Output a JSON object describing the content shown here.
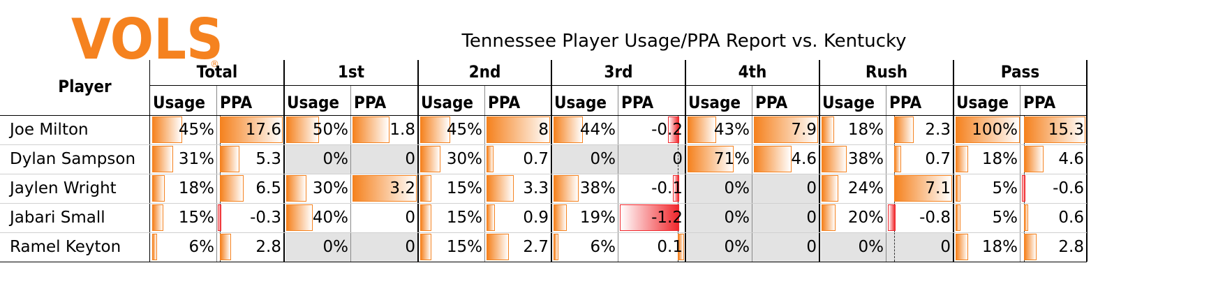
{
  "logo": {
    "text": "VOLS",
    "registered": "®",
    "color": "#f5821f"
  },
  "title": "Tennessee Player Usage/PPA Report vs. Kentucky",
  "chart_data": {
    "type": "table",
    "row_header": "Player",
    "groups": [
      "Total",
      "1st",
      "2nd",
      "3rd",
      "4th",
      "Rush",
      "Pass"
    ],
    "subcolumns": [
      "Usage",
      "PPA"
    ],
    "rows": [
      {
        "player": "Joe Milton",
        "usage": [
          "45%",
          "50%",
          "45%",
          "44%",
          "43%",
          "18%",
          "100%"
        ],
        "usage_values": [
          45,
          50,
          45,
          44,
          43,
          18,
          100
        ],
        "ppa": [
          "17.6",
          "1.8",
          "8",
          "-0.2",
          "7.9",
          "2.3",
          "15.3"
        ],
        "ppa_values": [
          17.6,
          1.8,
          8,
          -0.2,
          7.9,
          2.3,
          15.3
        ]
      },
      {
        "player": "Dylan Sampson",
        "usage": [
          "31%",
          "0%",
          "30%",
          "0%",
          "71%",
          "38%",
          "18%"
        ],
        "usage_values": [
          31,
          0,
          30,
          0,
          71,
          38,
          18
        ],
        "ppa": [
          "5.3",
          "0",
          "0.7",
          "0",
          "4.6",
          "0.7",
          "4.6"
        ],
        "ppa_values": [
          5.3,
          0,
          0.7,
          0,
          4.6,
          0.7,
          4.6
        ]
      },
      {
        "player": "Jaylen Wright",
        "usage": [
          "18%",
          "30%",
          "15%",
          "38%",
          "0%",
          "24%",
          "5%"
        ],
        "usage_values": [
          18,
          30,
          15,
          38,
          0,
          24,
          5
        ],
        "ppa": [
          "6.5",
          "3.2",
          "3.3",
          "-0.1",
          "0",
          "7.1",
          "-0.6"
        ],
        "ppa_values": [
          6.5,
          3.2,
          3.3,
          -0.1,
          0,
          7.1,
          -0.6
        ]
      },
      {
        "player": "Jabari Small",
        "usage": [
          "15%",
          "40%",
          "15%",
          "19%",
          "0%",
          "20%",
          "5%"
        ],
        "usage_values": [
          15,
          40,
          15,
          19,
          0,
          20,
          5
        ],
        "ppa": [
          "-0.3",
          "0",
          "0.9",
          "-1.2",
          "0",
          "-0.8",
          "0.6"
        ],
        "ppa_values": [
          -0.3,
          0,
          0.9,
          -1.2,
          0,
          -0.8,
          0.6
        ]
      },
      {
        "player": "Ramel Keyton",
        "usage": [
          "6%",
          "0%",
          "15%",
          "6%",
          "0%",
          "0%",
          "18%"
        ],
        "usage_values": [
          6,
          0,
          15,
          6,
          0,
          0,
          18
        ],
        "ppa": [
          "2.8",
          "0",
          "2.7",
          "0.1",
          "0",
          "0",
          "2.8"
        ],
        "ppa_values": [
          2.8,
          0,
          2.7,
          0.1,
          0,
          0,
          2.8
        ]
      }
    ],
    "colors": {
      "positive_bar": "#f5821f",
      "negative_bar": "#f0282d",
      "zero_fill": "#e3e3e3"
    }
  }
}
